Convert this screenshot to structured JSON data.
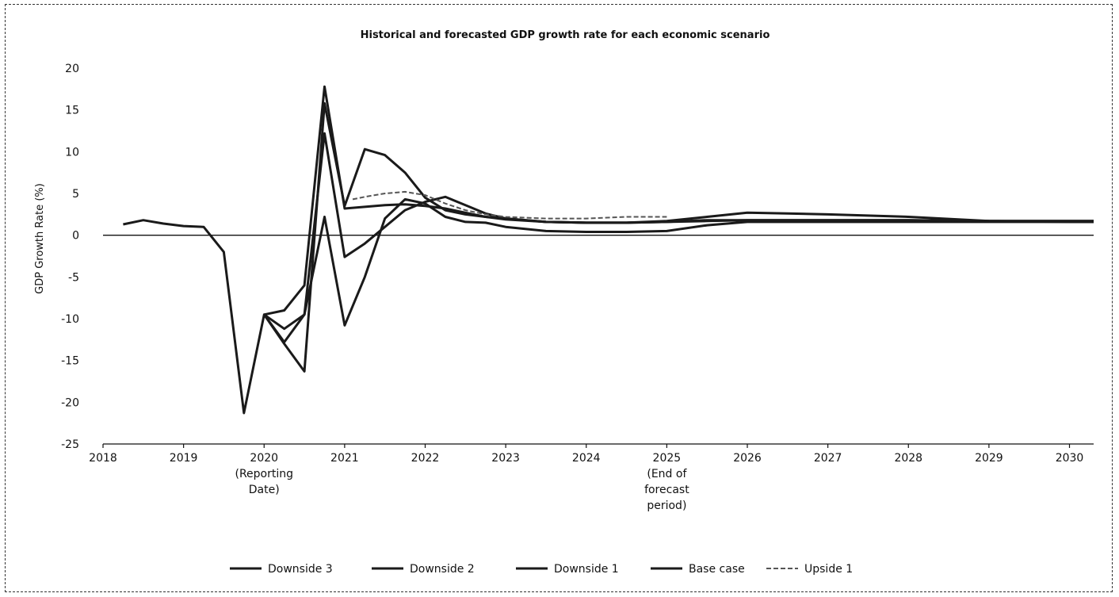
{
  "chart_data": {
    "type": "line",
    "title": "Historical and forecasted GDP growth rate for each economic scenario",
    "xlabel": "",
    "ylabel": "GDP Growth Rate (%)",
    "xlim": [
      2018,
      2030.3
    ],
    "ylim": [
      -25,
      22
    ],
    "y_ticks": [
      "20",
      "15",
      "10",
      "5",
      "0",
      "-5",
      "-10",
      "-15",
      "-20",
      "-25"
    ],
    "y_tick_values": [
      20,
      15,
      10,
      5,
      0,
      -5,
      -10,
      -15,
      -20,
      -25
    ],
    "x_ticks": [
      {
        "value": 2018,
        "lines": [
          "2018"
        ]
      },
      {
        "value": 2019,
        "lines": [
          "2019"
        ]
      },
      {
        "value": 2020,
        "lines": [
          "2020",
          "(Reporting",
          "Date)"
        ]
      },
      {
        "value": 2021,
        "lines": [
          "2021"
        ]
      },
      {
        "value": 2022,
        "lines": [
          "2022"
        ]
      },
      {
        "value": 2023,
        "lines": [
          "2023"
        ]
      },
      {
        "value": 2024,
        "lines": [
          "2024"
        ]
      },
      {
        "value": 2025,
        "lines": [
          "2025",
          "(End of",
          "forecast",
          "period)"
        ]
      },
      {
        "value": 2026,
        "lines": [
          "2026"
        ]
      },
      {
        "value": 2027,
        "lines": [
          "2027"
        ]
      },
      {
        "value": 2028,
        "lines": [
          "2028"
        ]
      },
      {
        "value": 2029,
        "lines": [
          "2029"
        ]
      },
      {
        "value": 2030,
        "lines": [
          "2030"
        ]
      }
    ],
    "grid": false,
    "legend_position": "bottom",
    "series": [
      {
        "name": "Downside 3",
        "color": "#1a1a1a",
        "dashed": false,
        "points": [
          [
            2018.25,
            1.3
          ],
          [
            2018.5,
            1.8
          ],
          [
            2018.75,
            1.4
          ],
          [
            2019,
            1.1
          ],
          [
            2019.25,
            1.0
          ],
          [
            2019.5,
            -2.0
          ],
          [
            2019.75,
            -21.3
          ],
          [
            2020,
            -9.5
          ],
          [
            2020.25,
            -12.8
          ],
          [
            2020.5,
            -9.5
          ],
          [
            2020.75,
            2.2
          ],
          [
            2021,
            -10.8
          ],
          [
            2021.25,
            -5.0
          ],
          [
            2021.5,
            2.0
          ],
          [
            2021.75,
            4.3
          ],
          [
            2022,
            3.8
          ],
          [
            2022.25,
            2.2
          ],
          [
            2022.5,
            1.6
          ],
          [
            2022.75,
            1.5
          ],
          [
            2023,
            1.0
          ],
          [
            2023.5,
            0.5
          ],
          [
            2024,
            0.4
          ],
          [
            2024.5,
            0.4
          ],
          [
            2025,
            0.5
          ],
          [
            2025.5,
            1.2
          ],
          [
            2026,
            1.6
          ],
          [
            2027,
            1.6
          ],
          [
            2028,
            1.6
          ],
          [
            2029,
            1.6
          ],
          [
            2030,
            1.6
          ],
          [
            2030.3,
            1.6
          ]
        ]
      },
      {
        "name": "Downside 2",
        "color": "#1a1a1a",
        "dashed": false,
        "points": [
          [
            2020,
            -9.5
          ],
          [
            2020.25,
            -11.2
          ],
          [
            2020.5,
            -9.5
          ],
          [
            2020.75,
            12.2
          ],
          [
            2021,
            -2.6
          ],
          [
            2021.25,
            -1.0
          ],
          [
            2021.5,
            1.0
          ],
          [
            2021.75,
            3.0
          ],
          [
            2022,
            4.0
          ],
          [
            2022.25,
            4.6
          ],
          [
            2022.5,
            3.6
          ],
          [
            2022.75,
            2.6
          ],
          [
            2023,
            2.0
          ],
          [
            2023.5,
            1.6
          ],
          [
            2024,
            1.5
          ],
          [
            2024.5,
            1.5
          ],
          [
            2025,
            1.6
          ],
          [
            2025.5,
            1.8
          ],
          [
            2026,
            1.8
          ],
          [
            2027,
            1.8
          ],
          [
            2028,
            1.8
          ],
          [
            2029,
            1.7
          ],
          [
            2030,
            1.7
          ],
          [
            2030.3,
            1.7
          ]
        ]
      },
      {
        "name": "Downside 1",
        "color": "#1a1a1a",
        "dashed": false,
        "points": [
          [
            2020,
            -9.5
          ],
          [
            2020.25,
            -13.0
          ],
          [
            2020.5,
            -16.3
          ],
          [
            2020.75,
            15.8
          ],
          [
            2021,
            3.5
          ],
          [
            2021.25,
            10.3
          ],
          [
            2021.5,
            9.6
          ],
          [
            2021.75,
            7.5
          ],
          [
            2022,
            4.5
          ],
          [
            2022.25,
            3.0
          ],
          [
            2022.5,
            2.5
          ],
          [
            2022.75,
            2.2
          ],
          [
            2023,
            2.0
          ],
          [
            2023.5,
            1.6
          ],
          [
            2024,
            1.5
          ],
          [
            2024.5,
            1.5
          ],
          [
            2025,
            1.7
          ],
          [
            2025.5,
            2.2
          ],
          [
            2026,
            2.7
          ],
          [
            2026.5,
            2.6
          ],
          [
            2027,
            2.5
          ],
          [
            2028,
            2.2
          ],
          [
            2029,
            1.7
          ],
          [
            2030,
            1.6
          ],
          [
            2030.3,
            1.6
          ]
        ]
      },
      {
        "name": "Base case",
        "color": "#1a1a1a",
        "dashed": false,
        "points": [
          [
            2020,
            -9.5
          ],
          [
            2020.25,
            -9.0
          ],
          [
            2020.5,
            -6.0
          ],
          [
            2020.75,
            17.8
          ],
          [
            2021,
            3.2
          ],
          [
            2021.25,
            3.4
          ],
          [
            2021.5,
            3.6
          ],
          [
            2021.75,
            3.7
          ],
          [
            2022,
            3.5
          ],
          [
            2022.25,
            3.2
          ],
          [
            2022.5,
            2.7
          ],
          [
            2022.75,
            2.2
          ],
          [
            2023,
            1.9
          ],
          [
            2023.5,
            1.6
          ],
          [
            2024,
            1.5
          ],
          [
            2024.5,
            1.5
          ],
          [
            2025,
            1.6
          ],
          [
            2025.5,
            1.7
          ],
          [
            2026,
            1.8
          ],
          [
            2027,
            1.8
          ],
          [
            2028,
            1.8
          ],
          [
            2029,
            1.7
          ],
          [
            2030,
            1.7
          ],
          [
            2030.3,
            1.7
          ]
        ]
      },
      {
        "name": "Upside 1",
        "color": "#555555",
        "dashed": true,
        "points": [
          [
            2021.1,
            4.3
          ],
          [
            2021.25,
            4.6
          ],
          [
            2021.5,
            5.0
          ],
          [
            2021.75,
            5.2
          ],
          [
            2022,
            4.8
          ],
          [
            2022.25,
            3.8
          ],
          [
            2022.5,
            3.0
          ],
          [
            2022.75,
            2.5
          ],
          [
            2023,
            2.2
          ],
          [
            2023.5,
            2.0
          ],
          [
            2024,
            2.0
          ],
          [
            2024.5,
            2.2
          ],
          [
            2025,
            2.2
          ]
        ]
      }
    ]
  }
}
